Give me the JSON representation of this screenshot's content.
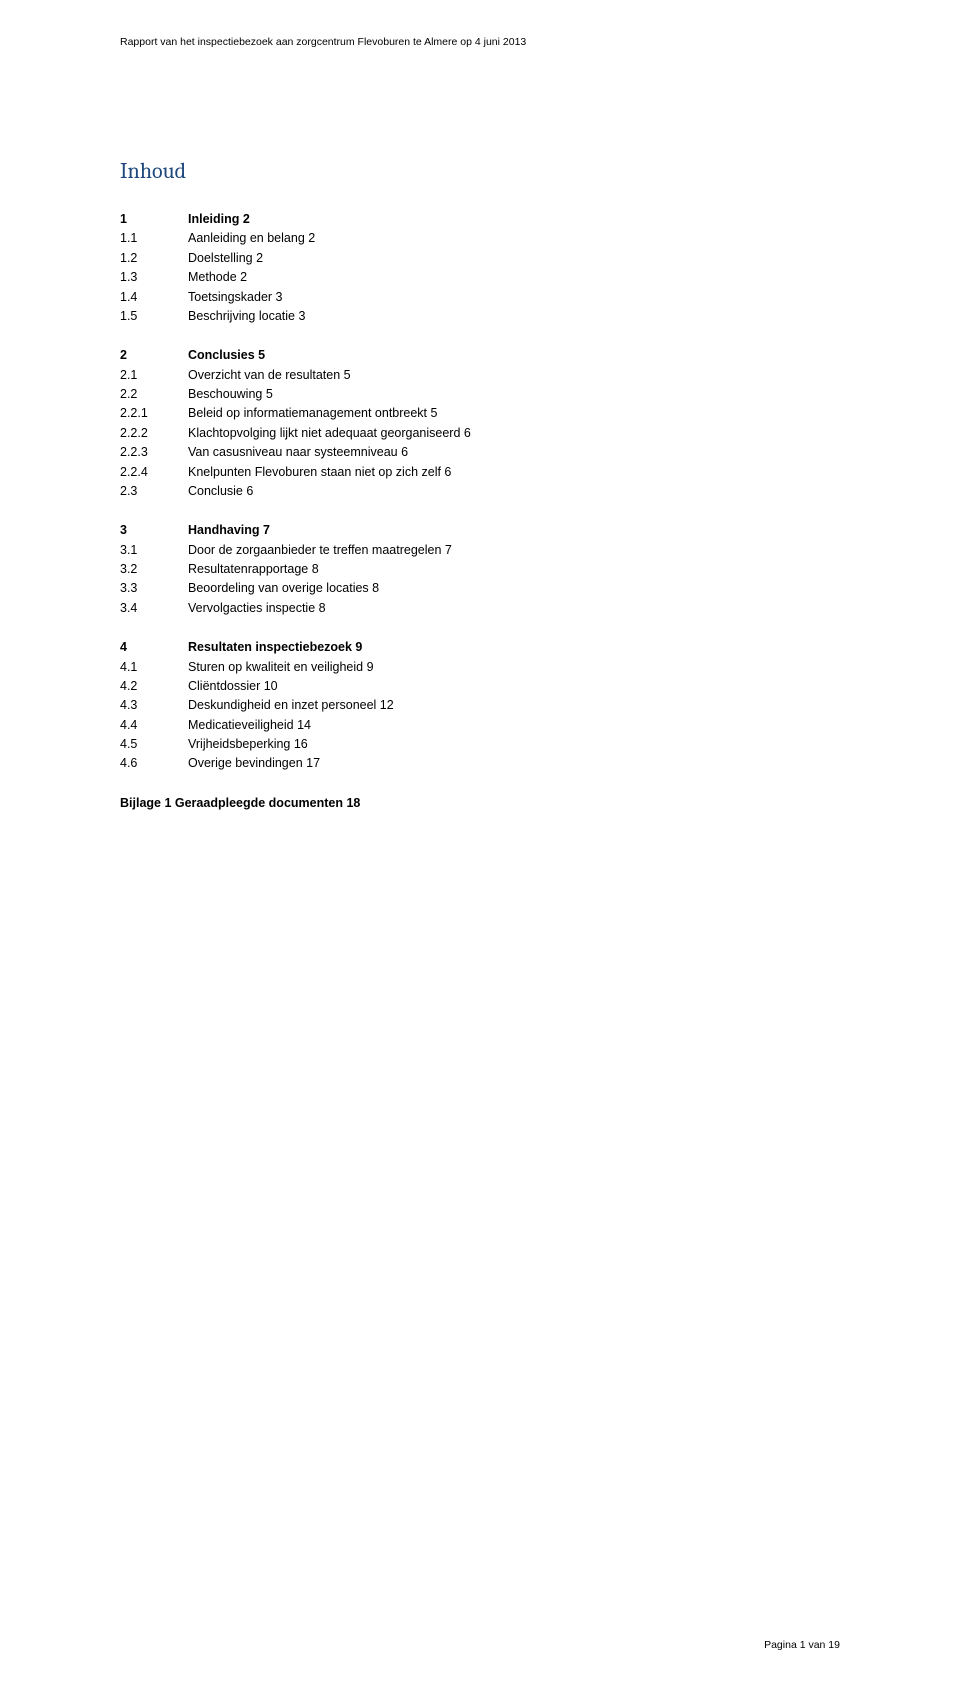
{
  "colors": {
    "text": "#000000",
    "title": "#1f497d",
    "background": "#ffffff"
  },
  "typography": {
    "body_family": "Verdana, Geneva, sans-serif",
    "title_family": "Cambria, Georgia, serif",
    "header_fontsize_pt": 8,
    "body_fontsize_pt": 9.5,
    "title_fontsize_pt": 16
  },
  "header": "Rapport van het inspectiebezoek aan zorgcentrum Flevoburen te Almere op 4 juni 2013",
  "title": "Inhoud",
  "toc": [
    {
      "items": [
        {
          "num": "1",
          "label": "Inleiding  2",
          "bold": true
        },
        {
          "num": "1.1",
          "label": "Aanleiding en belang 2",
          "bold": false
        },
        {
          "num": "1.2",
          "label": "Doelstelling 2",
          "bold": false
        },
        {
          "num": "1.3",
          "label": "Methode  2",
          "bold": false
        },
        {
          "num": "1.4",
          "label": "Toetsingskader  3",
          "bold": false
        },
        {
          "num": "1.5",
          "label": "Beschrijving locatie  3",
          "bold": false
        }
      ]
    },
    {
      "items": [
        {
          "num": "2",
          "label": "Conclusies 5",
          "bold": true
        },
        {
          "num": "2.1",
          "label": "Overzicht van de resultaten  5",
          "bold": false
        },
        {
          "num": "2.2",
          "label": "Beschouwing  5",
          "bold": false
        },
        {
          "num": "2.2.1",
          "label": "Beleid op informatiemanagement ontbreekt  5",
          "bold": false
        },
        {
          "num": "2.2.2",
          "label": "Klachtopvolging lijkt niet adequaat georganiseerd 6",
          "bold": false
        },
        {
          "num": "2.2.3",
          "label": "Van casusniveau naar systeemniveau  6",
          "bold": false
        },
        {
          "num": "2.2.4",
          "label": "Knelpunten Flevoburen staan niet op zich zelf  6",
          "bold": false
        },
        {
          "num": "2.3",
          "label": "Conclusie   6",
          "bold": false
        }
      ]
    },
    {
      "items": [
        {
          "num": "3",
          "label": "Handhaving  7",
          "bold": true
        },
        {
          "num": "3.1",
          "label": "Door de zorgaanbieder te treffen maatregelen   7",
          "bold": false
        },
        {
          "num": "3.2",
          "label": "Resultatenrapportage   8",
          "bold": false
        },
        {
          "num": "3.3",
          "label": "Beoordeling van overige locaties  8",
          "bold": false
        },
        {
          "num": "3.4",
          "label": "Vervolgacties inspectie  8",
          "bold": false
        }
      ]
    },
    {
      "items": [
        {
          "num": "4",
          "label": "Resultaten inspectiebezoek 9",
          "bold": true
        },
        {
          "num": "4.1",
          "label": "Sturen op kwaliteit en veiligheid  9",
          "bold": false
        },
        {
          "num": "4.2",
          "label": "Cliëntdossier  10",
          "bold": false
        },
        {
          "num": "4.3",
          "label": "Deskundigheid en inzet personeel  12",
          "bold": false
        },
        {
          "num": "4.4",
          "label": "Medicatieveiligheid   14",
          "bold": false
        },
        {
          "num": "4.5",
          "label": "Vrijheidsbeperking  16",
          "bold": false
        },
        {
          "num": "4.6",
          "label": "Overige bevindingen  17",
          "bold": false
        }
      ]
    }
  ],
  "appendix": "Bijlage 1 Geraadpleegde documenten  18",
  "footer": "Pagina 1 van 19"
}
